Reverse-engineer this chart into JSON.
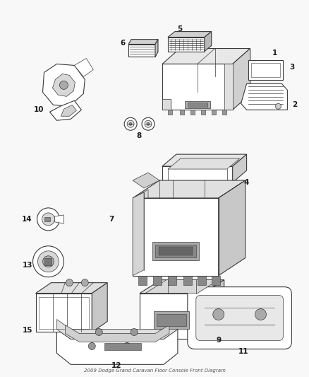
{
  "title": "2009 Dodge Grand Caravan Floor Console Front Diagram",
  "bg": "#f8f8f8",
  "lc": "#3a3a3a",
  "fig_w": 4.38,
  "fig_h": 5.33,
  "dpi": 100,
  "label_size": 7.5,
  "label_color": "#1a1a1a"
}
